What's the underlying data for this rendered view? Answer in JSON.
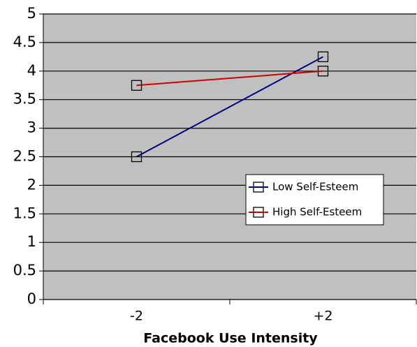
{
  "chart_data": {
    "type": "line",
    "x_label": "Facebook Use Intensity",
    "categories": [
      "-2",
      "+2"
    ],
    "series": [
      {
        "name": "Low Self-Esteem",
        "color": "#000080",
        "values": [
          2.5,
          4.25
        ]
      },
      {
        "name": "High Self-Esteem",
        "color": "#d00000",
        "values": [
          3.75,
          4.0
        ]
      }
    ],
    "ylim": [
      0,
      5
    ],
    "yticks": [
      0,
      0.5,
      1,
      1.5,
      2,
      2.5,
      3,
      3.5,
      4,
      4.5,
      5
    ],
    "grid": true,
    "plot_background": "#c0c0c0",
    "legend": "center right"
  }
}
